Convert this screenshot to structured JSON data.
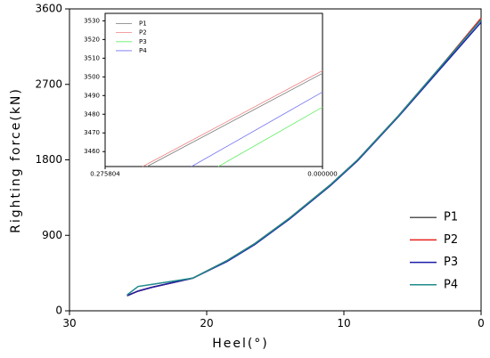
{
  "chart_data": [
    {
      "type": "line",
      "xlabel": "Heel(°)",
      "ylabel": "Righting force(kN)",
      "xlim": [
        30,
        0
      ],
      "xticks": [
        30,
        20,
        10,
        0
      ],
      "ylim": [
        0,
        3600
      ],
      "yticks": [
        0,
        900,
        1800,
        2700,
        3600
      ],
      "legend": "lower right",
      "x": [
        25.8,
        25,
        24,
        21,
        18.5,
        16.5,
        14,
        11,
        9,
        6,
        3,
        0
      ],
      "series": [
        {
          "name": "P1",
          "color": "#555555",
          "values": [
            180,
            235,
            280,
            390,
            600,
            800,
            1100,
            1500,
            1800,
            2330,
            2900,
            3480
          ]
        },
        {
          "name": "P2",
          "color": "#e8201c",
          "values": [
            180,
            235,
            280,
            390,
            600,
            800,
            1100,
            1500,
            1800,
            2330,
            2900,
            3490
          ]
        },
        {
          "name": "P3",
          "color": "#1c1ca8",
          "values": [
            180,
            235,
            280,
            390,
            590,
            790,
            1090,
            1490,
            1790,
            2320,
            2880,
            3440
          ]
        },
        {
          "name": "P4",
          "color": "#1f8a8a",
          "values": [
            190,
            290,
            315,
            390,
            600,
            800,
            1100,
            1500,
            1800,
            2330,
            2900,
            3470
          ]
        }
      ]
    },
    {
      "type": "line",
      "xlim": [
        0.275804,
        0
      ],
      "xticks": [
        0.275804,
        {
          "value": 0,
          "label": "0.000000"
        }
      ],
      "ylim": [
        3452,
        3534
      ],
      "yticks": [
        3460,
        3470,
        3480,
        3490,
        3500,
        3510,
        3520,
        3530
      ],
      "legend": "upper left",
      "series": [
        {
          "name": "P1",
          "color": "#777777",
          "x": [
            0.2227,
            0
          ],
          "values": [
            3452,
            3501.9
          ]
        },
        {
          "name": "P2",
          "color": "#f08080",
          "x": [
            0.2283,
            0
          ],
          "values": [
            3452,
            3503.3
          ]
        },
        {
          "name": "P3",
          "color": "#66ee66",
          "x": [
            0.1322,
            0
          ],
          "values": [
            3452,
            3483.8
          ]
        },
        {
          "name": "P4",
          "color": "#7070f0",
          "x": [
            0.1662,
            0
          ],
          "values": [
            3452,
            3491.9
          ]
        }
      ]
    }
  ]
}
